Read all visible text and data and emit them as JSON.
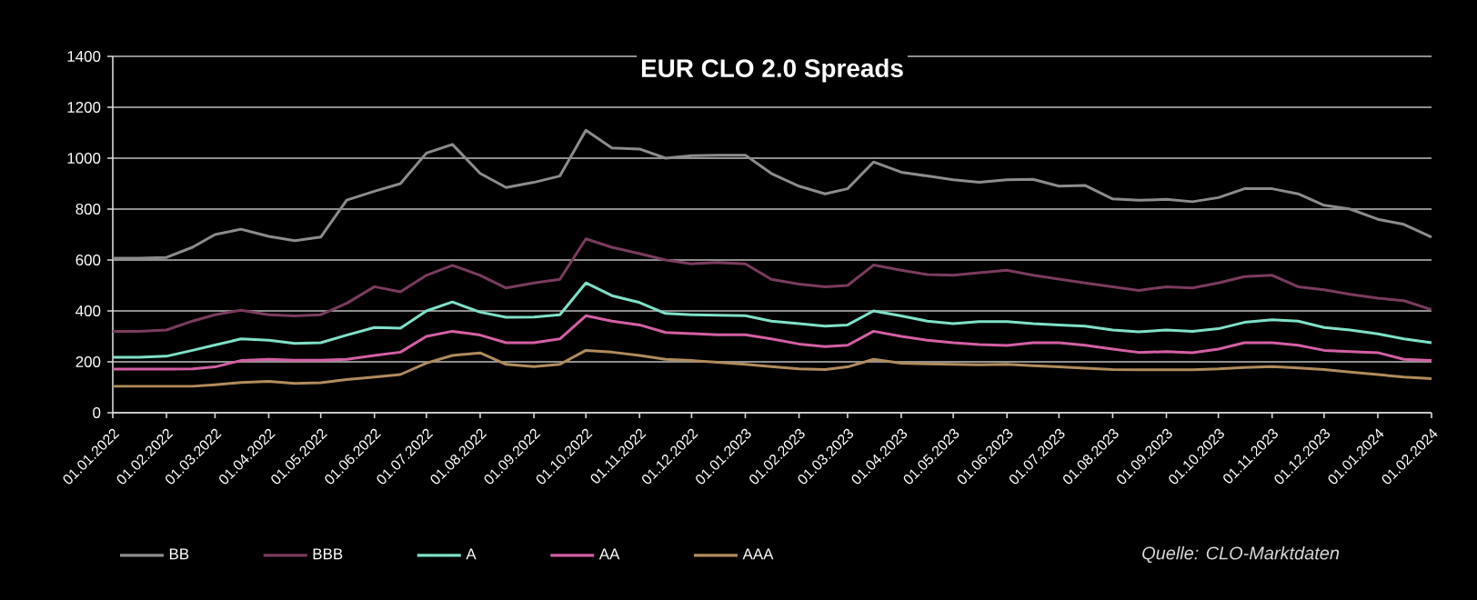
{
  "chart_data": {
    "type": "line",
    "title": "EUR CLO 2.0 Spreads",
    "x": [
      "2022-01-01",
      "2022-01-16",
      "2022-02-01",
      "2022-02-16",
      "2022-03-01",
      "2022-03-16",
      "2022-04-01",
      "2022-04-16",
      "2022-05-01",
      "2022-05-16",
      "2022-06-01",
      "2022-06-16",
      "2022-07-01",
      "2022-07-16",
      "2022-08-01",
      "2022-08-16",
      "2022-09-01",
      "2022-09-16",
      "2022-10-01",
      "2022-10-16",
      "2022-11-01",
      "2022-11-16",
      "2022-12-01",
      "2022-12-16",
      "2023-01-01",
      "2023-01-16",
      "2023-02-01",
      "2023-02-16",
      "2023-03-01",
      "2023-03-16",
      "2023-04-01",
      "2023-04-16",
      "2023-05-01",
      "2023-05-16",
      "2023-06-01",
      "2023-06-16",
      "2023-07-01",
      "2023-07-16",
      "2023-08-01",
      "2023-08-16",
      "2023-09-01",
      "2023-09-16",
      "2023-10-01",
      "2023-10-16",
      "2023-11-01",
      "2023-11-16",
      "2023-12-01",
      "2023-12-16",
      "2024-01-01",
      "2024-01-16",
      "2024-02-01"
    ],
    "series": [
      {
        "name": "BB",
        "color": "#8c8c8c",
        "values": [
          607,
          607,
          610,
          650,
          700,
          721,
          693,
          676,
          690,
          835,
          870,
          900,
          1020,
          1054,
          940,
          885,
          905,
          930,
          1110,
          1040,
          1036,
          1000,
          1010,
          1012,
          1012,
          940,
          890,
          860,
          880,
          985,
          945,
          930,
          915,
          905,
          915,
          917,
          890,
          893,
          840,
          835,
          838,
          829,
          845,
          880,
          880,
          860,
          815,
          800,
          760,
          740,
          690
        ]
      },
      {
        "name": "BBB",
        "color": "#7b3b5e",
        "values": [
          320,
          320,
          325,
          360,
          385,
          403,
          385,
          380,
          385,
          430,
          495,
          475,
          540,
          579,
          540,
          490,
          510,
          524,
          683,
          650,
          625,
          600,
          585,
          590,
          585,
          524,
          505,
          495,
          500,
          580,
          560,
          543,
          540,
          550,
          560,
          540,
          525,
          510,
          495,
          480,
          495,
          490,
          510,
          535,
          540,
          495,
          483,
          465,
          450,
          440,
          405
        ]
      },
      {
        "name": "A",
        "color": "#7fe0c8",
        "values": [
          218,
          218,
          222,
          245,
          266,
          290,
          285,
          272,
          275,
          305,
          335,
          332,
          400,
          435,
          395,
          375,
          376,
          385,
          510,
          460,
          433,
          390,
          385,
          383,
          381,
          360,
          350,
          340,
          345,
          400,
          380,
          360,
          350,
          358,
          358,
          350,
          345,
          340,
          325,
          318,
          325,
          320,
          330,
          355,
          365,
          360,
          335,
          325,
          310,
          290,
          275
        ]
      },
      {
        "name": "AA",
        "color": "#d45fa5",
        "values": [
          171,
          171,
          171,
          172,
          180,
          205,
          210,
          206,
          206,
          210,
          225,
          238,
          300,
          320,
          305,
          275,
          275,
          290,
          381,
          360,
          345,
          315,
          311,
          306,
          306,
          290,
          270,
          260,
          265,
          320,
          300,
          285,
          275,
          268,
          264,
          275,
          275,
          265,
          250,
          237,
          240,
          236,
          250,
          275,
          275,
          265,
          245,
          240,
          236,
          210,
          205
        ]
      },
      {
        "name": "AAA",
        "color": "#b08c5c",
        "values": [
          104,
          104,
          104,
          104,
          110,
          119,
          123,
          115,
          118,
          130,
          140,
          150,
          195,
          225,
          235,
          190,
          181,
          190,
          245,
          238,
          225,
          210,
          205,
          198,
          190,
          181,
          172,
          170,
          180,
          210,
          195,
          192,
          190,
          188,
          190,
          185,
          180,
          175,
          170,
          169,
          169,
          169,
          172,
          178,
          181,
          176,
          170,
          160,
          150,
          140,
          134
        ]
      }
    ],
    "xlim": [
      "2022-01-01",
      "2024-02-01"
    ],
    "xticks": [
      {
        "value": "2022-01-01",
        "label": "01.01.2022"
      },
      {
        "value": "2022-02-01",
        "label": "01.02.2022"
      },
      {
        "value": "2022-03-01",
        "label": "01.03.2022"
      },
      {
        "value": "2022-04-01",
        "label": "01.04.2022"
      },
      {
        "value": "2022-05-01",
        "label": "01.05.2022"
      },
      {
        "value": "2022-06-01",
        "label": "01.06.2022"
      },
      {
        "value": "2022-07-01",
        "label": "01.07.2022"
      },
      {
        "value": "2022-08-01",
        "label": "01.08.2022"
      },
      {
        "value": "2022-09-01",
        "label": "01.09.2022"
      },
      {
        "value": "2022-10-01",
        "label": "01.10.2022"
      },
      {
        "value": "2022-11-01",
        "label": "01.11.2022"
      },
      {
        "value": "2022-12-01",
        "label": "01.12.2022"
      },
      {
        "value": "2023-01-01",
        "label": "01.01.2023"
      },
      {
        "value": "2023-02-01",
        "label": "01.02.2023"
      },
      {
        "value": "2023-03-01",
        "label": "01.03.2023"
      },
      {
        "value": "2023-04-01",
        "label": "01.04.2023"
      },
      {
        "value": "2023-05-01",
        "label": "01.05.2023"
      },
      {
        "value": "2023-06-01",
        "label": "01.06.2023"
      },
      {
        "value": "2023-07-01",
        "label": "01.07.2023"
      },
      {
        "value": "2023-08-01",
        "label": "01.08.2023"
      },
      {
        "value": "2023-09-01",
        "label": "01.09.2023"
      },
      {
        "value": "2023-10-01",
        "label": "01.10.2023"
      },
      {
        "value": "2023-11-01",
        "label": "01.11.2023"
      },
      {
        "value": "2023-12-01",
        "label": "01.12.2023"
      },
      {
        "value": "2024-01-01",
        "label": "01.01.2024"
      },
      {
        "value": "2024-02-01",
        "label": "01.02.2024"
      }
    ],
    "ylim": [
      0,
      1400
    ],
    "yticks": [
      0,
      200,
      400,
      600,
      800,
      1000,
      1200,
      1400
    ],
    "grid": "y",
    "legend": "bottom left",
    "marker": "none",
    "line_style": "solid",
    "annotations": [
      "Quelle: CLO-Marktdaten"
    ]
  }
}
